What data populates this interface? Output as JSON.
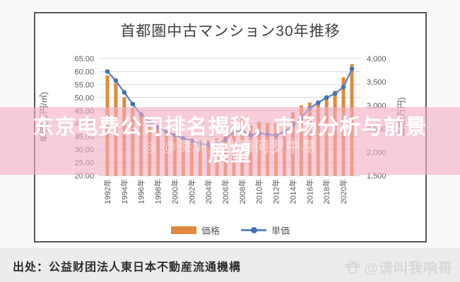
{
  "chart_data": {
    "type": "bar",
    "title": "首都圏中古マンション30年推移",
    "categories": [
      1992,
      1993,
      1994,
      1995,
      1996,
      1997,
      1998,
      1999,
      2000,
      2001,
      2002,
      2003,
      2004,
      2005,
      2006,
      2007,
      2008,
      2009,
      2010,
      2011,
      2012,
      2013,
      2014,
      2015,
      2016,
      2017,
      2018,
      2019,
      2020,
      2021
    ],
    "series": [
      {
        "name": "価格",
        "type": "bar",
        "axis": "right",
        "color": "#DF8A3E",
        "values": [
          3640,
          3470,
          3170,
          2950,
          2800,
          2680,
          2560,
          2470,
          2400,
          2340,
          2290,
          2260,
          2250,
          2300,
          2410,
          2650,
          2700,
          2570,
          2650,
          2620,
          2610,
          2710,
          2850,
          3000,
          3060,
          3080,
          3170,
          3310,
          3600,
          3880
        ]
      },
      {
        "name": "単価",
        "type": "line",
        "axis": "left",
        "color": "#5B87C5",
        "marker_color": "#4173B5",
        "values": [
          60.0,
          56.5,
          52.0,
          47.5,
          43.5,
          40.5,
          38.5,
          36.8,
          35.5,
          34.3,
          33.3,
          32.3,
          31.8,
          32.3,
          33.8,
          36.8,
          37.3,
          35.5,
          36.3,
          35.8,
          35.5,
          36.8,
          39.3,
          42.3,
          45.8,
          48.0,
          50.0,
          51.5,
          54.0,
          61.0
        ]
      }
    ],
    "left_axis": {
      "title": "単価(万円/㎡)",
      "min": 20,
      "max": 65,
      "step": 5,
      "tick_labels": [
        "65.00",
        "60.00",
        "55.00",
        "50.00",
        "45.00",
        "40.00",
        "35.00",
        "30.00",
        "25.00",
        "20.00"
      ]
    },
    "right_axis": {
      "title": "価格(万円)",
      "min": 1500,
      "max": 4000,
      "step": 500,
      "tick_labels": [
        "4,000",
        "3,500",
        "3,000",
        "2,500",
        "2,000",
        "1,500"
      ]
    },
    "x_tick_labels": [
      "1992年",
      "1994年",
      "1996年",
      "1998年",
      "2000年",
      "2002年",
      "2004年",
      "2006年",
      "2008年",
      "2010年",
      "2012年",
      "2014年",
      "2016年",
      "2018年",
      "2020年"
    ],
    "grid": true,
    "legend_position": "bottom",
    "grid_color": "#d8d8d8",
    "tick_color": "#595959"
  },
  "overlay": {
    "line1": "东京电费公司排名揭秘，市场分析与前景",
    "line2": "展望",
    "watermark": "◎ @深圳置业顾问罗中易",
    "band_color": "rgba(244,172,194,0.62)"
  },
  "footer": {
    "source": "出处：公益财团法人東日本不動産流通機構",
    "watermark": "@请叫我响哥"
  }
}
